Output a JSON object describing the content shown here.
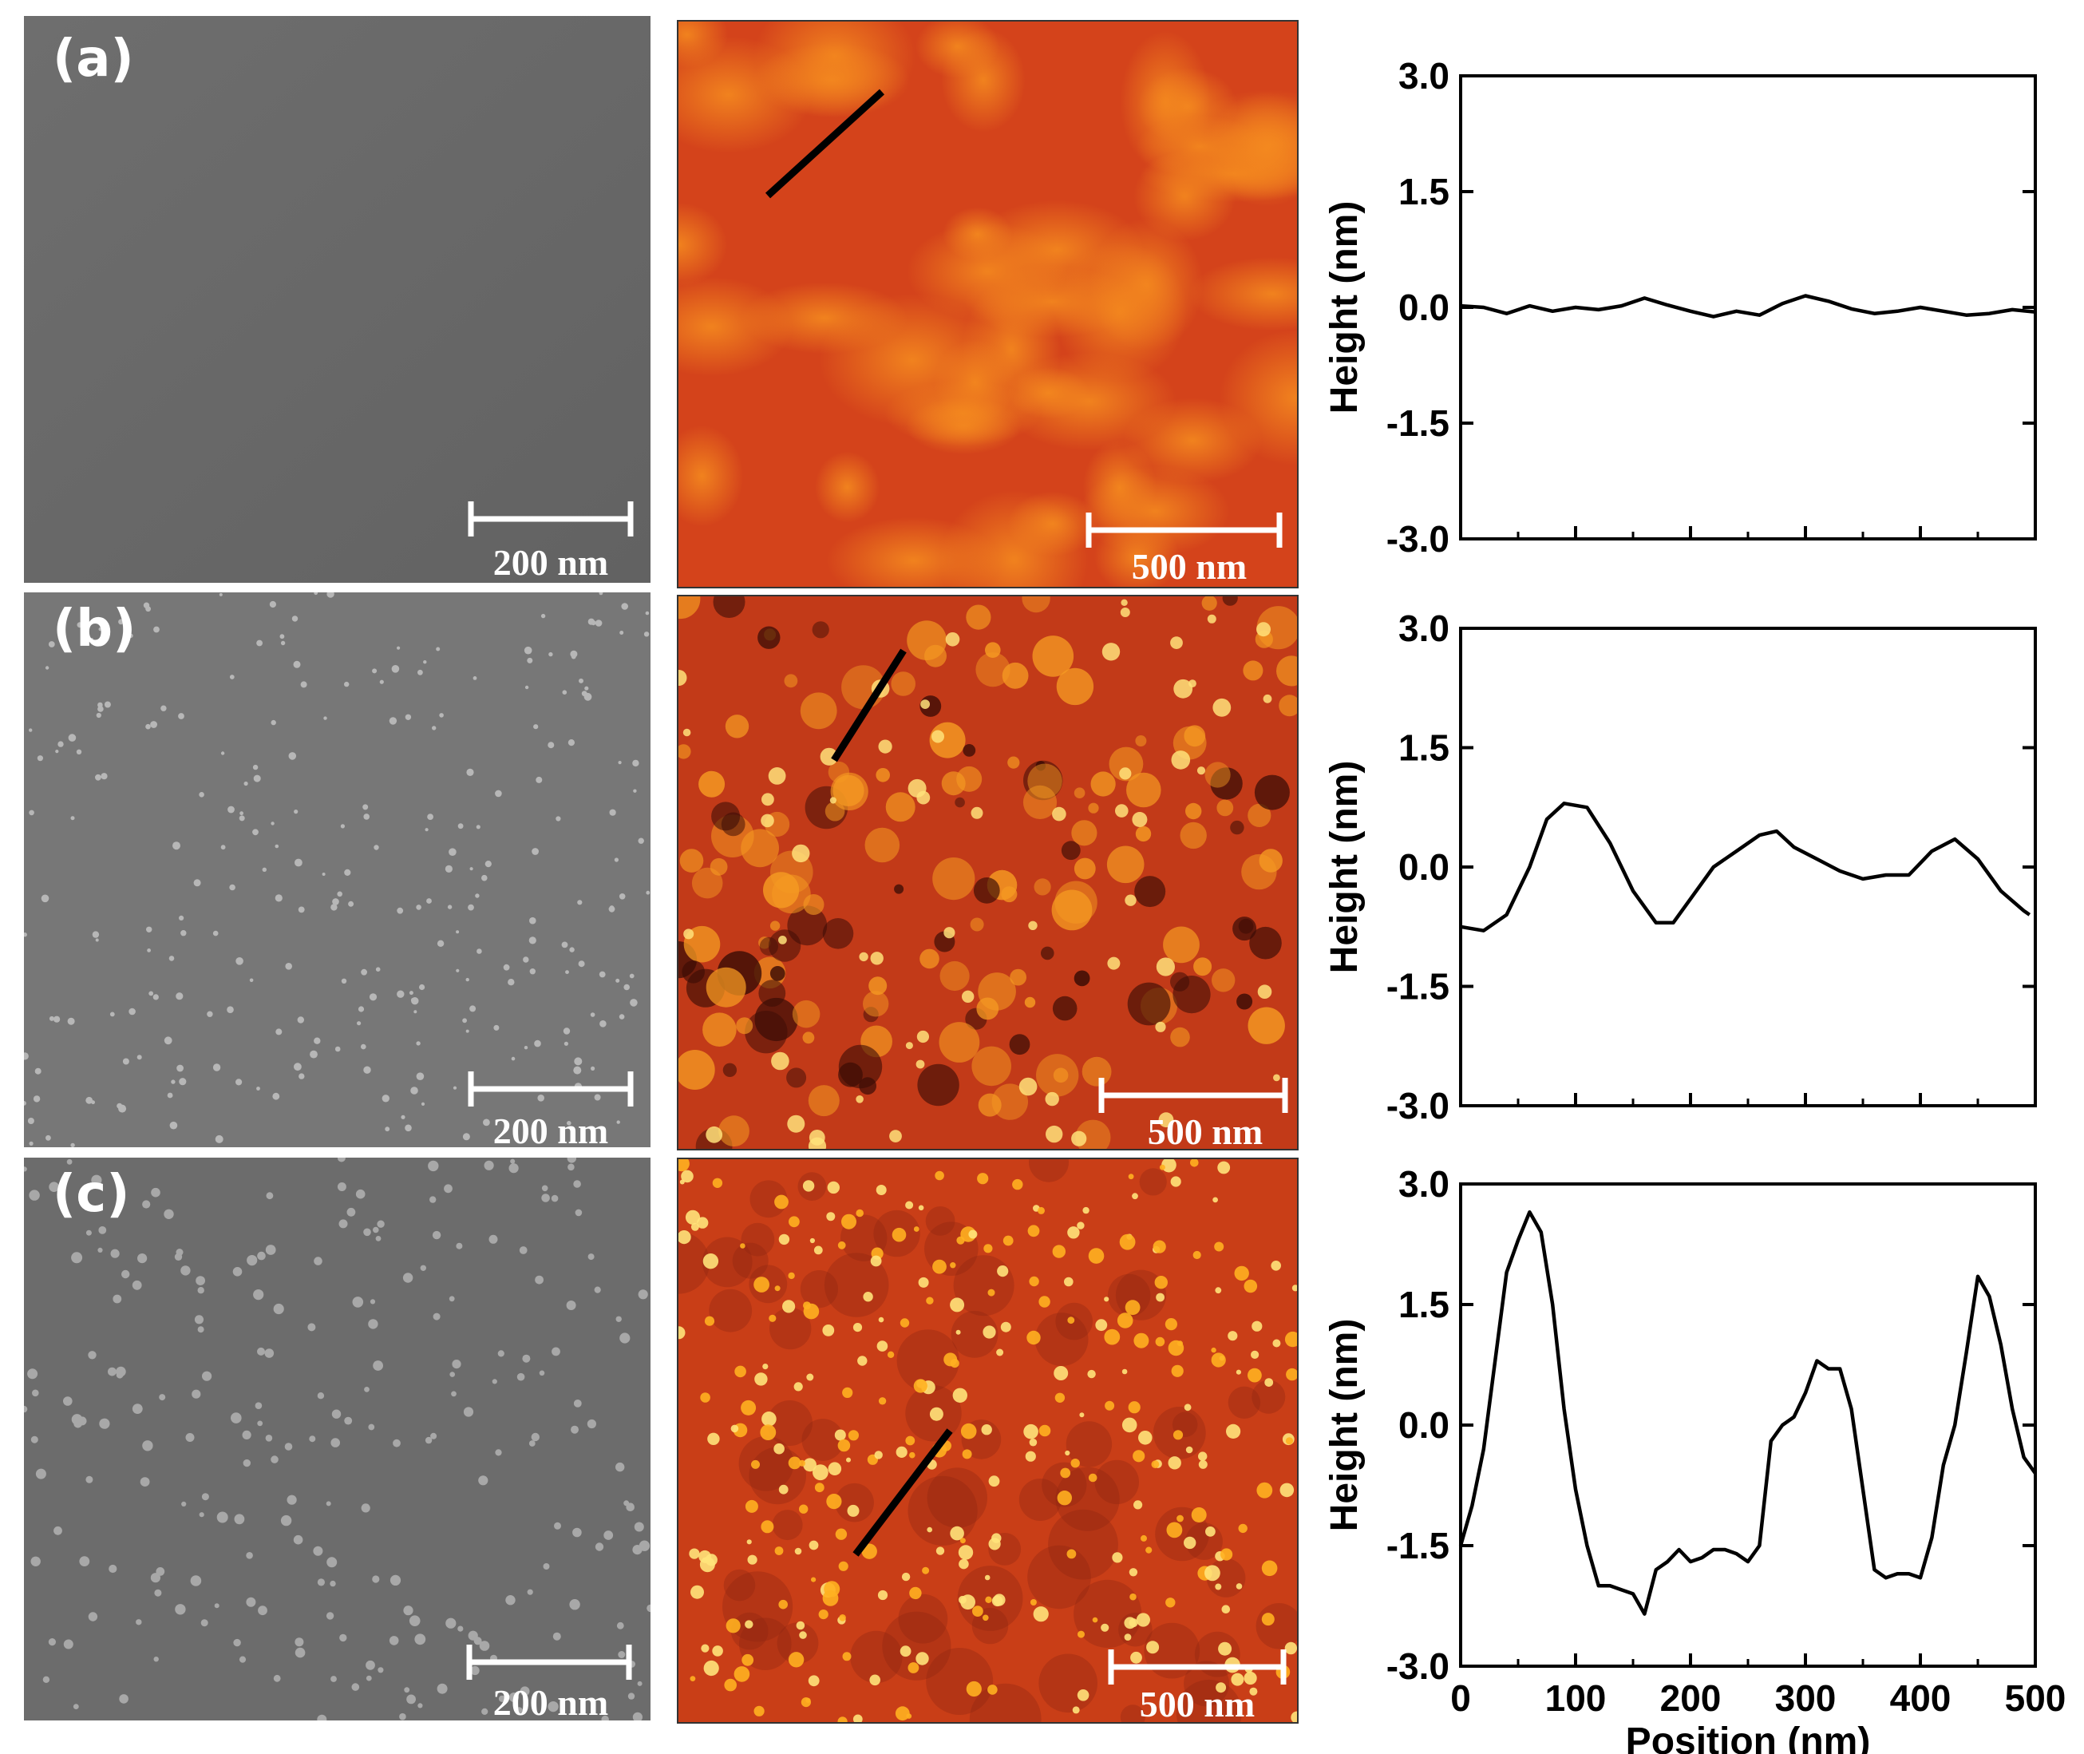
{
  "panels": [
    {
      "label": "(a)",
      "sem_scale": "200 nm",
      "afm_scale": "500 nm"
    },
    {
      "label": "(b)",
      "sem_scale": "200 nm",
      "afm_scale": "500 nm"
    },
    {
      "label": "(c)",
      "sem_scale": "200 nm",
      "afm_scale": "500 nm"
    }
  ],
  "colors": {
    "sem_gray": "#6b6b6b",
    "afm_red": "#c9361a",
    "afm_bright": "#ffd84a",
    "profile_line": "#000000"
  },
  "chart_data": [
    {
      "type": "line",
      "panel": "(a)",
      "xlabel": "",
      "ylabel": "Height (nm)",
      "xlim": [
        0,
        500
      ],
      "ylim": [
        -3.0,
        3.0
      ],
      "x_ticks": [
        0,
        100,
        200,
        300,
        400,
        500
      ],
      "x_tick_labels": [
        "",
        "",
        "",
        "",
        "",
        ""
      ],
      "y_ticks": [
        3.0,
        1.5,
        0.0,
        -1.5,
        -3.0
      ],
      "y_tick_labels": [
        "3.0",
        "1.5",
        "0.0",
        "-1.5",
        "-3.0"
      ],
      "x": [
        0,
        20,
        40,
        60,
        80,
        100,
        120,
        140,
        160,
        180,
        200,
        220,
        240,
        260,
        280,
        300,
        320,
        340,
        360,
        380,
        400,
        420,
        440,
        460,
        480,
        500
      ],
      "y": [
        0.02,
        0.0,
        -0.08,
        0.02,
        -0.05,
        0.0,
        -0.03,
        0.02,
        0.12,
        0.03,
        -0.05,
        -0.12,
        -0.05,
        -0.1,
        0.05,
        0.15,
        0.08,
        -0.02,
        -0.08,
        -0.05,
        0.0,
        -0.05,
        -0.1,
        -0.08,
        -0.03,
        -0.06
      ]
    },
    {
      "type": "line",
      "panel": "(b)",
      "xlabel": "",
      "ylabel": "Height (nm)",
      "xlim": [
        0,
        500
      ],
      "ylim": [
        -3.0,
        3.0
      ],
      "x_ticks": [
        0,
        100,
        200,
        300,
        400,
        500
      ],
      "x_tick_labels": [
        "",
        "",
        "",
        "",
        "",
        ""
      ],
      "y_ticks": [
        3.0,
        1.5,
        0.0,
        -1.5,
        -3.0
      ],
      "y_tick_labels": [
        "3.0",
        "1.5",
        "0.0",
        "-1.5",
        "-3.0"
      ],
      "x": [
        0,
        20,
        40,
        60,
        75,
        90,
        110,
        130,
        150,
        170,
        185,
        200,
        220,
        240,
        260,
        275,
        290,
        310,
        330,
        350,
        370,
        390,
        410,
        430,
        450,
        470,
        490,
        495
      ],
      "y": [
        -0.75,
        -0.8,
        -0.6,
        0.0,
        0.6,
        0.8,
        0.75,
        0.3,
        -0.3,
        -0.7,
        -0.7,
        -0.4,
        0.0,
        0.2,
        0.4,
        0.45,
        0.25,
        0.1,
        -0.05,
        -0.15,
        -0.1,
        -0.1,
        0.2,
        0.35,
        0.1,
        -0.3,
        -0.55,
        -0.6
      ]
    },
    {
      "type": "line",
      "panel": "(c)",
      "xlabel": "Position (nm)",
      "ylabel": "Height (nm)",
      "xlim": [
        0,
        500
      ],
      "ylim": [
        -3.0,
        3.0
      ],
      "x_ticks": [
        0,
        100,
        200,
        300,
        400,
        500
      ],
      "x_tick_labels": [
        "0",
        "100",
        "200",
        "300",
        "400",
        "500"
      ],
      "y_ticks": [
        3.0,
        1.5,
        0.0,
        -1.5,
        -3.0
      ],
      "y_tick_labels": [
        "3.0",
        "1.5",
        "0.0",
        "-1.5",
        "-3.0"
      ],
      "x": [
        0,
        10,
        20,
        30,
        40,
        50,
        60,
        70,
        80,
        90,
        100,
        110,
        120,
        130,
        140,
        150,
        160,
        170,
        180,
        190,
        200,
        210,
        220,
        230,
        240,
        250,
        260,
        270,
        280,
        290,
        300,
        310,
        320,
        330,
        340,
        350,
        360,
        370,
        380,
        390,
        400,
        410,
        420,
        430,
        440,
        450,
        460,
        470,
        480,
        490,
        500
      ],
      "y": [
        -1.5,
        -1.0,
        -0.3,
        0.8,
        1.9,
        2.3,
        2.65,
        2.4,
        1.5,
        0.2,
        -0.8,
        -1.5,
        -2.0,
        -2.0,
        -2.05,
        -2.1,
        -2.35,
        -1.8,
        -1.7,
        -1.55,
        -1.7,
        -1.65,
        -1.55,
        -1.55,
        -1.6,
        -1.7,
        -1.5,
        -0.2,
        0.0,
        0.1,
        0.4,
        0.8,
        0.7,
        0.7,
        0.2,
        -0.8,
        -1.8,
        -1.9,
        -1.85,
        -1.85,
        -1.9,
        -1.4,
        -0.5,
        0.0,
        0.9,
        1.85,
        1.6,
        1.0,
        0.2,
        -0.4,
        -0.6
      ]
    }
  ]
}
